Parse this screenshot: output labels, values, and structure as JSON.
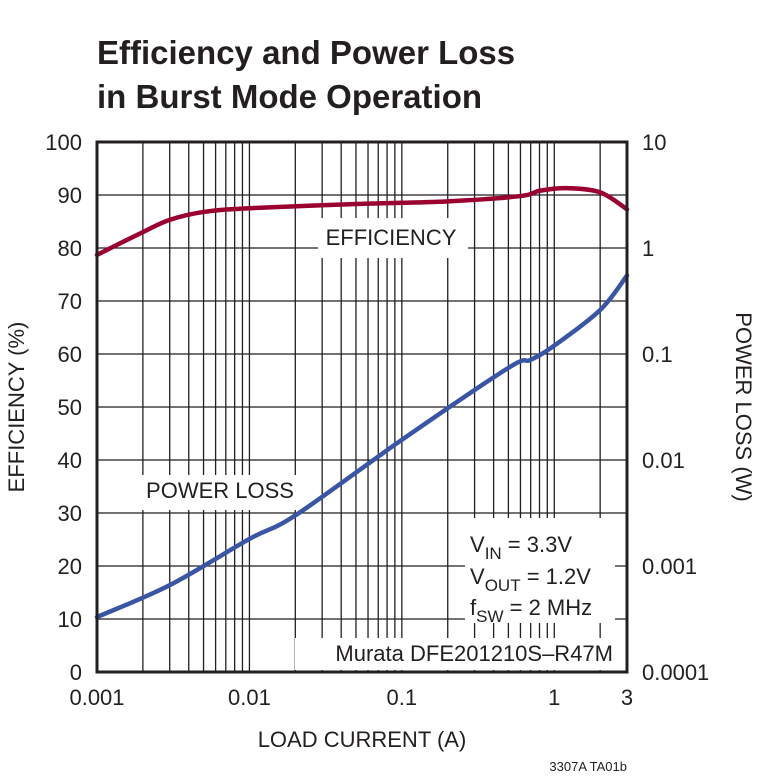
{
  "chart_data": {
    "type": "line",
    "title": [
      "Efficiency and Power Loss",
      "in Burst Mode Operation"
    ],
    "xlabel": "LOAD CURRENT (A)",
    "ylabel": "EFFICIENCY (%)",
    "y2label": "POWER LOSS (W)",
    "xscale": "log",
    "xlim": [
      0.001,
      3
    ],
    "ylim": [
      0,
      100
    ],
    "y2scale": "log",
    "y2lim": [
      0.0001,
      10
    ],
    "grid": true,
    "x_ticks": [
      "0.001",
      "0.01",
      "0.1",
      "1",
      "3"
    ],
    "y_ticks": [
      "0",
      "10",
      "20",
      "30",
      "40",
      "50",
      "60",
      "70",
      "80",
      "90",
      "100"
    ],
    "y2_ticks": [
      "0.0001",
      "0.001",
      "0.01",
      "0.1",
      "1",
      "10"
    ],
    "series": [
      {
        "name": "EFFICIENCY",
        "axis": "left",
        "color": "#9a0030",
        "x": [
          0.001,
          0.002,
          0.003,
          0.005,
          0.01,
          0.05,
          0.2,
          0.6,
          0.8,
          1.2,
          2,
          3
        ],
        "y": [
          78.7,
          83,
          85.3,
          86.8,
          87.5,
          88.3,
          88.8,
          89.8,
          90.8,
          91.3,
          90.5,
          87.3
        ]
      },
      {
        "name": "POWER LOSS",
        "axis": "right",
        "color": "#3a55a4",
        "x": [
          0.001,
          0.003,
          0.01,
          0.02,
          0.1,
          0.5,
          0.7,
          1,
          2,
          3
        ],
        "y": [
          0.00033,
          0.00066,
          0.0018,
          0.003,
          0.0155,
          0.074,
          0.088,
          0.12,
          0.26,
          0.55
        ]
      }
    ],
    "annotations": [
      "V_IN = 3.3V",
      "V_OUT = 1.2V",
      "f_SW = 2 MHz",
      "Murata DFE201210S–R47M"
    ],
    "annotation_parts": {
      "vin": {
        "main": "V",
        "sub": "IN",
        "rest": " = 3.3V"
      },
      "vout": {
        "main": "V",
        "sub": "OUT",
        "rest": " = 1.2V"
      },
      "fsw": {
        "main": "f",
        "sub": "SW",
        "rest": " = 2 MHz"
      },
      "inductor": "Murata DFE201210S–R47M"
    },
    "footnote": "3307A TA01b"
  }
}
